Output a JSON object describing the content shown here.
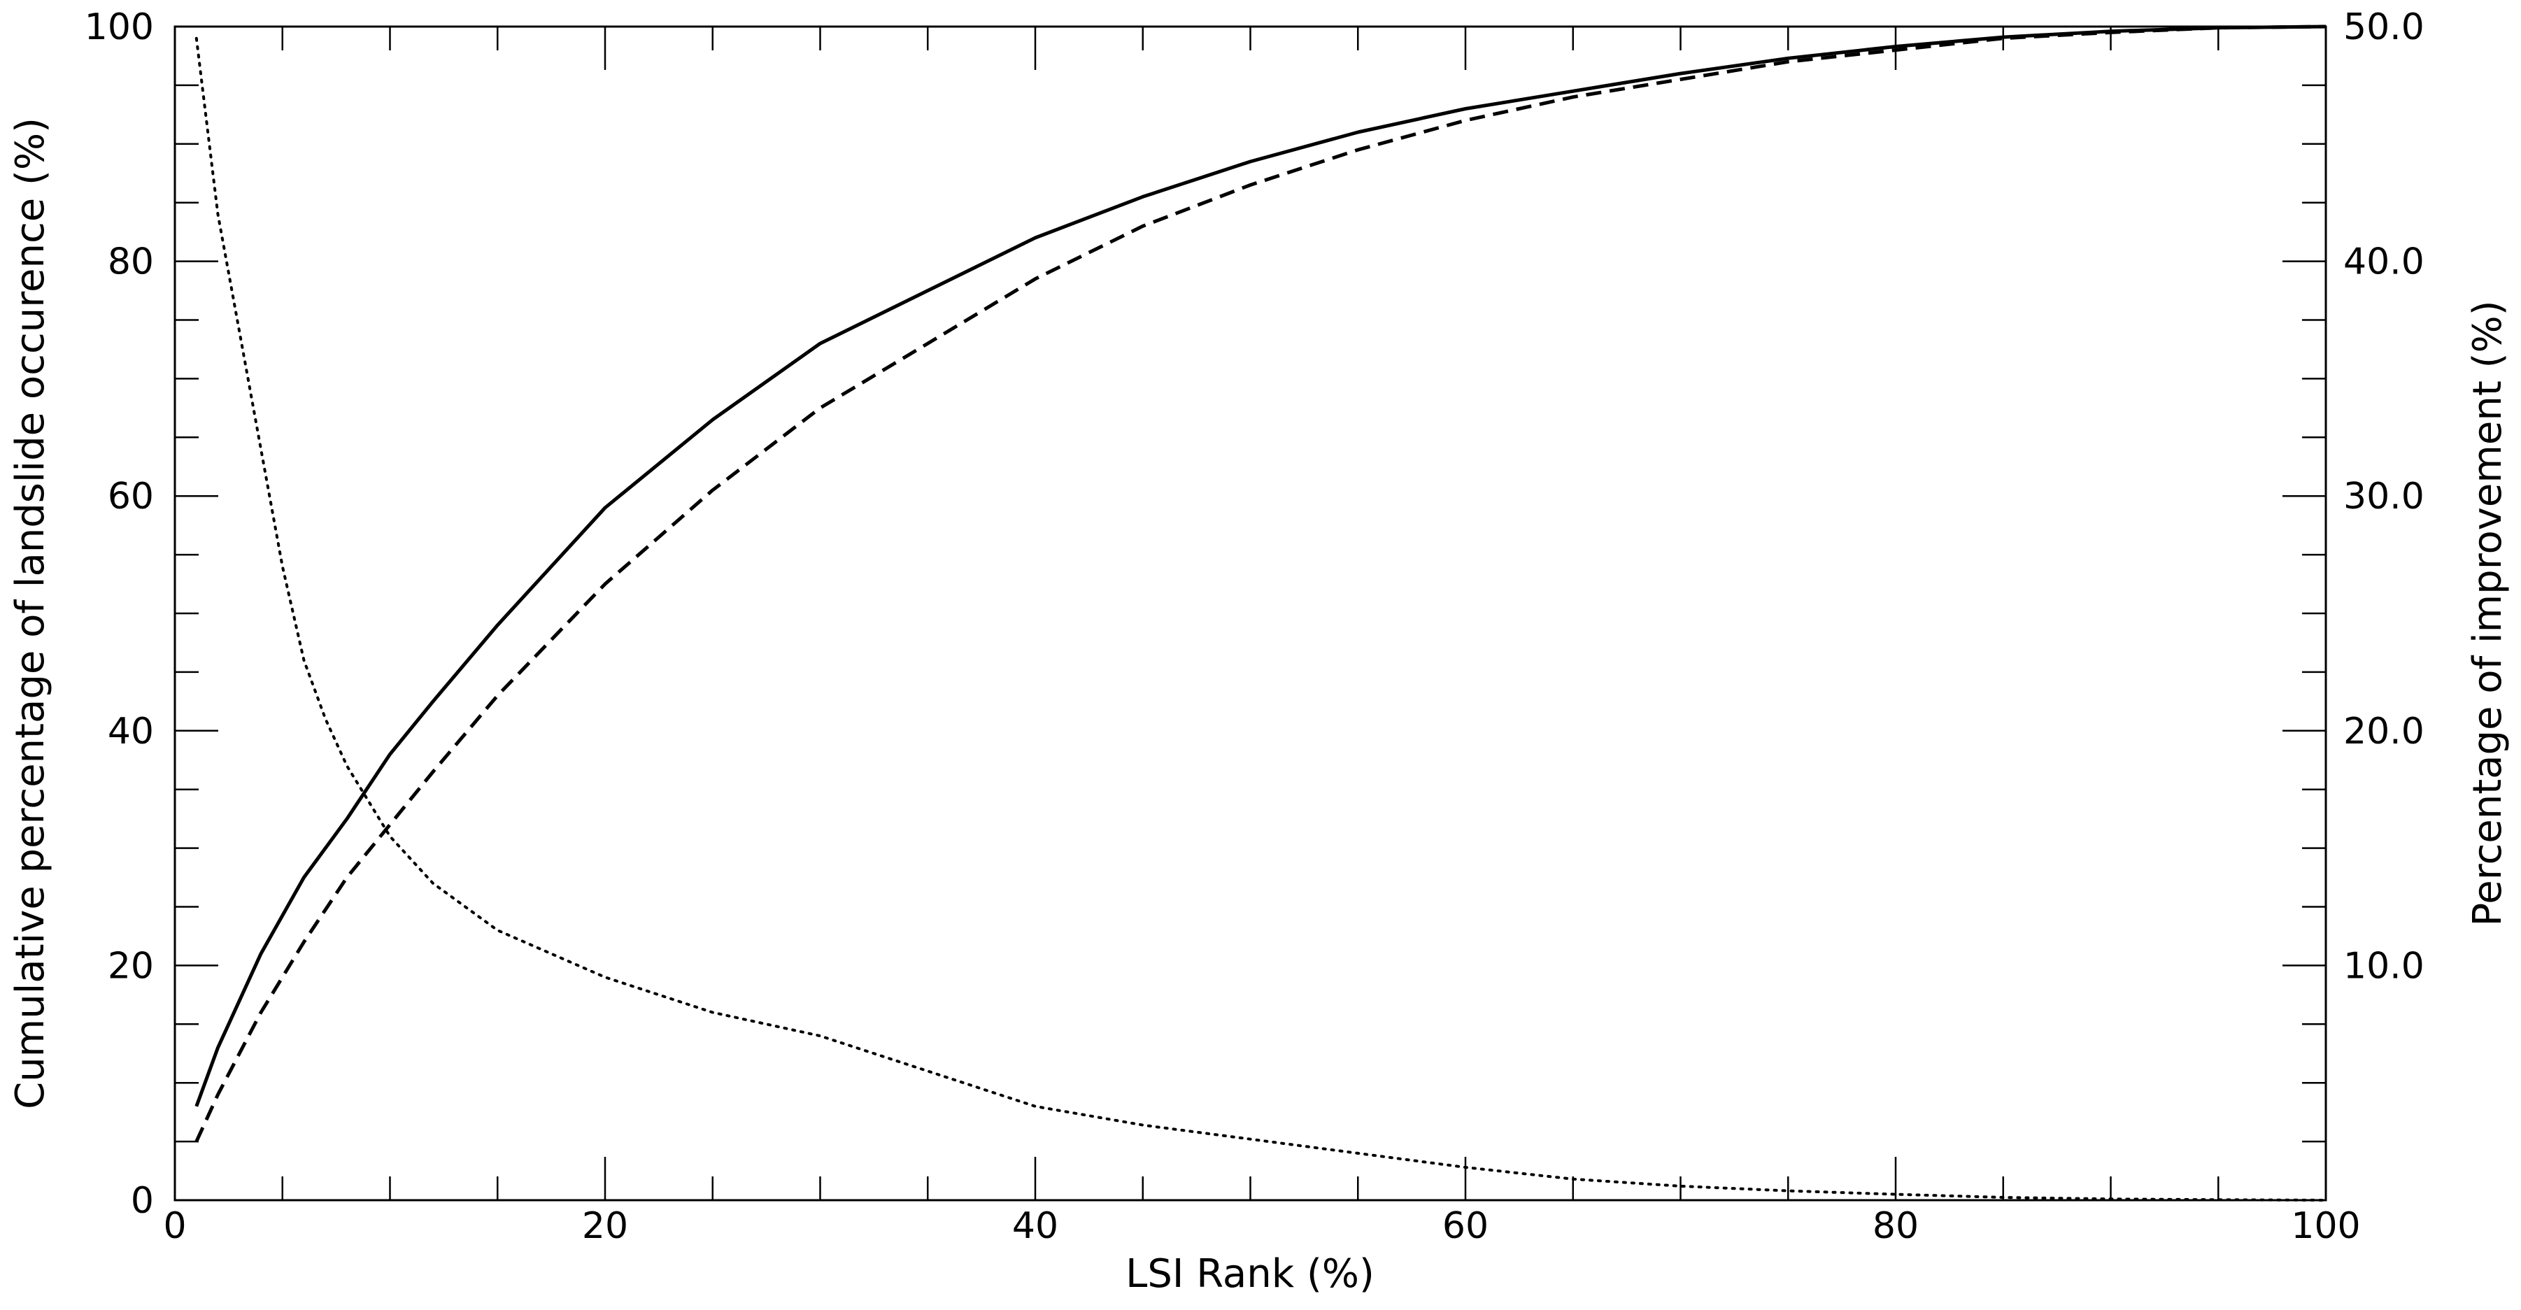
{
  "chart_data": {
    "type": "line",
    "title": "",
    "xlabel": "LSI Rank (%)",
    "ylabel": "Cumulative percentage of landslide occurence (%)",
    "y2label": "Percentage of improvement (%)",
    "xlim": [
      0,
      100
    ],
    "ylim": [
      0,
      100
    ],
    "y2lim": [
      0,
      50
    ],
    "x_ticks": [
      "0",
      "20",
      "40",
      "60",
      "80",
      "100"
    ],
    "y_ticks": [
      "0",
      "20",
      "40",
      "60",
      "80",
      "100"
    ],
    "y2_ticks": [
      "10.0",
      "20.0",
      "30.0",
      "40.0",
      "50.0"
    ],
    "grid": false,
    "legend": "none",
    "series": [
      {
        "style": "solid",
        "axis": "left",
        "x": [
          1,
          2,
          4,
          6,
          8,
          10,
          12,
          15,
          20,
          25,
          30,
          35,
          40,
          45,
          50,
          55,
          60,
          65,
          70,
          75,
          80,
          85,
          90,
          95,
          100
        ],
        "y": [
          8,
          13,
          21,
          27.5,
          32.5,
          38,
          42.5,
          49,
          59,
          66.5,
          73,
          77.5,
          82,
          85.5,
          88.5,
          91,
          93,
          94.5,
          96,
          97.3,
          98.3,
          99.1,
          99.6,
          99.9,
          100
        ]
      },
      {
        "style": "dashed",
        "axis": "left",
        "x": [
          1,
          2,
          4,
          6,
          8,
          10,
          12,
          15,
          20,
          25,
          30,
          35,
          40,
          45,
          50,
          55,
          60,
          65,
          70,
          75,
          80,
          85,
          90,
          95,
          100
        ],
        "y": [
          5,
          9,
          16,
          22,
          27.5,
          32,
          36.5,
          43,
          52.5,
          60.5,
          67.5,
          73,
          78.5,
          83,
          86.5,
          89.5,
          92,
          94,
          95.5,
          97,
          98,
          99,
          99.5,
          99.9,
          100
        ]
      },
      {
        "style": "dotted",
        "axis": "right",
        "x": [
          1,
          2,
          3,
          4,
          5,
          6,
          7,
          8,
          9,
          10,
          12,
          15,
          20,
          25,
          30,
          35,
          40,
          45,
          50,
          55,
          60,
          65,
          70,
          75,
          80,
          85,
          90,
          95,
          100
        ],
        "y": [
          49.5,
          42,
          37,
          32,
          27,
          23,
          20.5,
          18.5,
          17,
          15.5,
          13.5,
          11.5,
          9.5,
          8,
          7,
          5.5,
          4,
          3.2,
          2.6,
          2,
          1.4,
          0.9,
          0.6,
          0.4,
          0.25,
          0.12,
          0.05,
          0.02,
          0
        ]
      }
    ]
  }
}
